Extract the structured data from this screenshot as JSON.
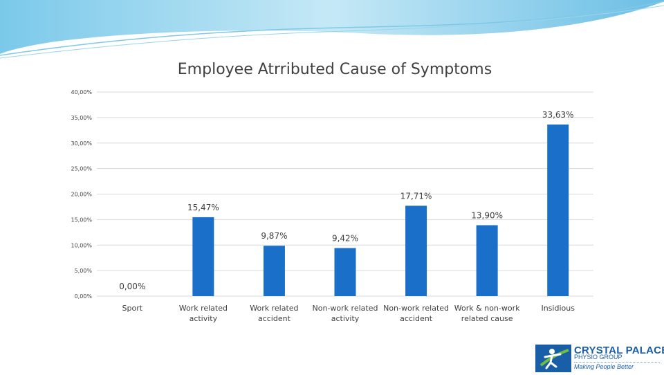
{
  "chart_data": {
    "type": "bar",
    "title": "Employee Atrributed Cause of Symptoms",
    "categories": [
      [
        "Sport"
      ],
      [
        "Work related",
        "activity"
      ],
      [
        "Work related",
        "accident"
      ],
      [
        "Non-work related",
        "activity"
      ],
      [
        "Non-work related",
        "accident"
      ],
      [
        "Work & non-work",
        "related cause"
      ],
      [
        "Insidious"
      ]
    ],
    "values": [
      0.0,
      15.47,
      9.87,
      9.42,
      17.71,
      13.9,
      33.63
    ],
    "data_labels": [
      "0,00%",
      "15,47%",
      "9,87%",
      "9,42%",
      "17,71%",
      "13,90%",
      "33,63%"
    ],
    "ylim": [
      0,
      40
    ],
    "yticks": [
      0,
      5,
      10,
      15,
      20,
      25,
      30,
      35,
      40
    ],
    "ytick_labels": [
      "0,00%",
      "5,00%",
      "10,00%",
      "15,00%",
      "20,00%",
      "25,00%",
      "30,00%",
      "35,00%",
      "40,00%"
    ],
    "grid": true,
    "bar_color": "#1a6fc8",
    "grid_color": "#d9d9d9"
  },
  "logo": {
    "name": "CRYSTAL PALACE",
    "subtitle": "PHYSIO GROUP",
    "tagline": "Making People Better",
    "color": "#1a5ea8",
    "accent": "#6fbf3f"
  }
}
